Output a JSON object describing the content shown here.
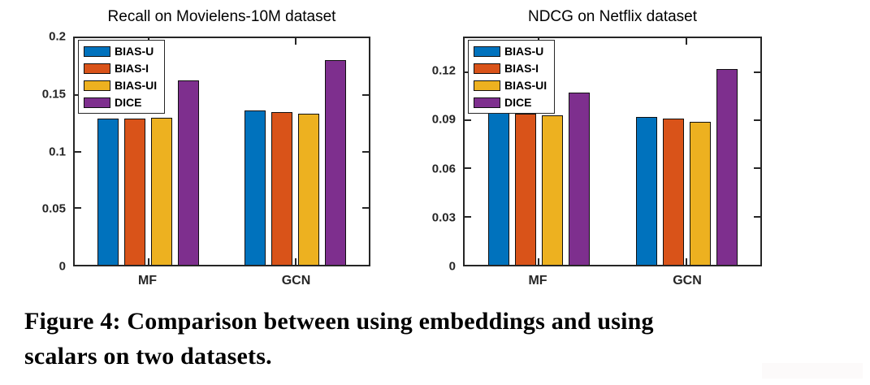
{
  "figure": {
    "caption_line1": "Figure 4: Comparison between using embeddings and using",
    "caption_line2": "scalars on two datasets."
  },
  "chart_data": [
    {
      "type": "bar",
      "title": "Recall on Movielens-10M dataset",
      "categories": [
        "MF",
        "GCN"
      ],
      "series": [
        {
          "name": "BIAS-U",
          "color": "#0072BD",
          "values": [
            0.129,
            0.136
          ]
        },
        {
          "name": "BIAS-I",
          "color": "#D95319",
          "values": [
            0.129,
            0.135
          ]
        },
        {
          "name": "BIAS-UI",
          "color": "#EDB120",
          "values": [
            0.13,
            0.133
          ]
        },
        {
          "name": "DICE",
          "color": "#7E2F8E",
          "values": [
            0.163,
            0.181
          ]
        }
      ],
      "ylim": [
        0,
        0.2
      ],
      "yticks": [
        {
          "value": 0,
          "label": "0"
        },
        {
          "value": 0.05,
          "label": "0.05"
        },
        {
          "value": 0.1,
          "label": "0.1"
        },
        {
          "value": 0.15,
          "label": "0.15"
        },
        {
          "value": 0.2,
          "label": "0.2"
        }
      ],
      "grid": false,
      "legend_position": "top-left"
    },
    {
      "type": "bar",
      "title": "NDCG on Netflix dataset",
      "categories": [
        "MF",
        "GCN"
      ],
      "series": [
        {
          "name": "BIAS-U",
          "color": "#0072BD",
          "values": [
            0.095,
            0.092
          ]
        },
        {
          "name": "BIAS-I",
          "color": "#D95319",
          "values": [
            0.094,
            0.091
          ]
        },
        {
          "name": "BIAS-UI",
          "color": "#EDB120",
          "values": [
            0.093,
            0.089
          ]
        },
        {
          "name": "DICE",
          "color": "#7E2F8E",
          "values": [
            0.107,
            0.122
          ]
        }
      ],
      "ylim": [
        0,
        0.141
      ],
      "yticks": [
        {
          "value": 0,
          "label": "0"
        },
        {
          "value": 0.03,
          "label": "0.03"
        },
        {
          "value": 0.06,
          "label": "0.06"
        },
        {
          "value": 0.09,
          "label": "0.09"
        },
        {
          "value": 0.12,
          "label": "0.12"
        }
      ],
      "grid": false,
      "legend_position": "top-left"
    }
  ]
}
